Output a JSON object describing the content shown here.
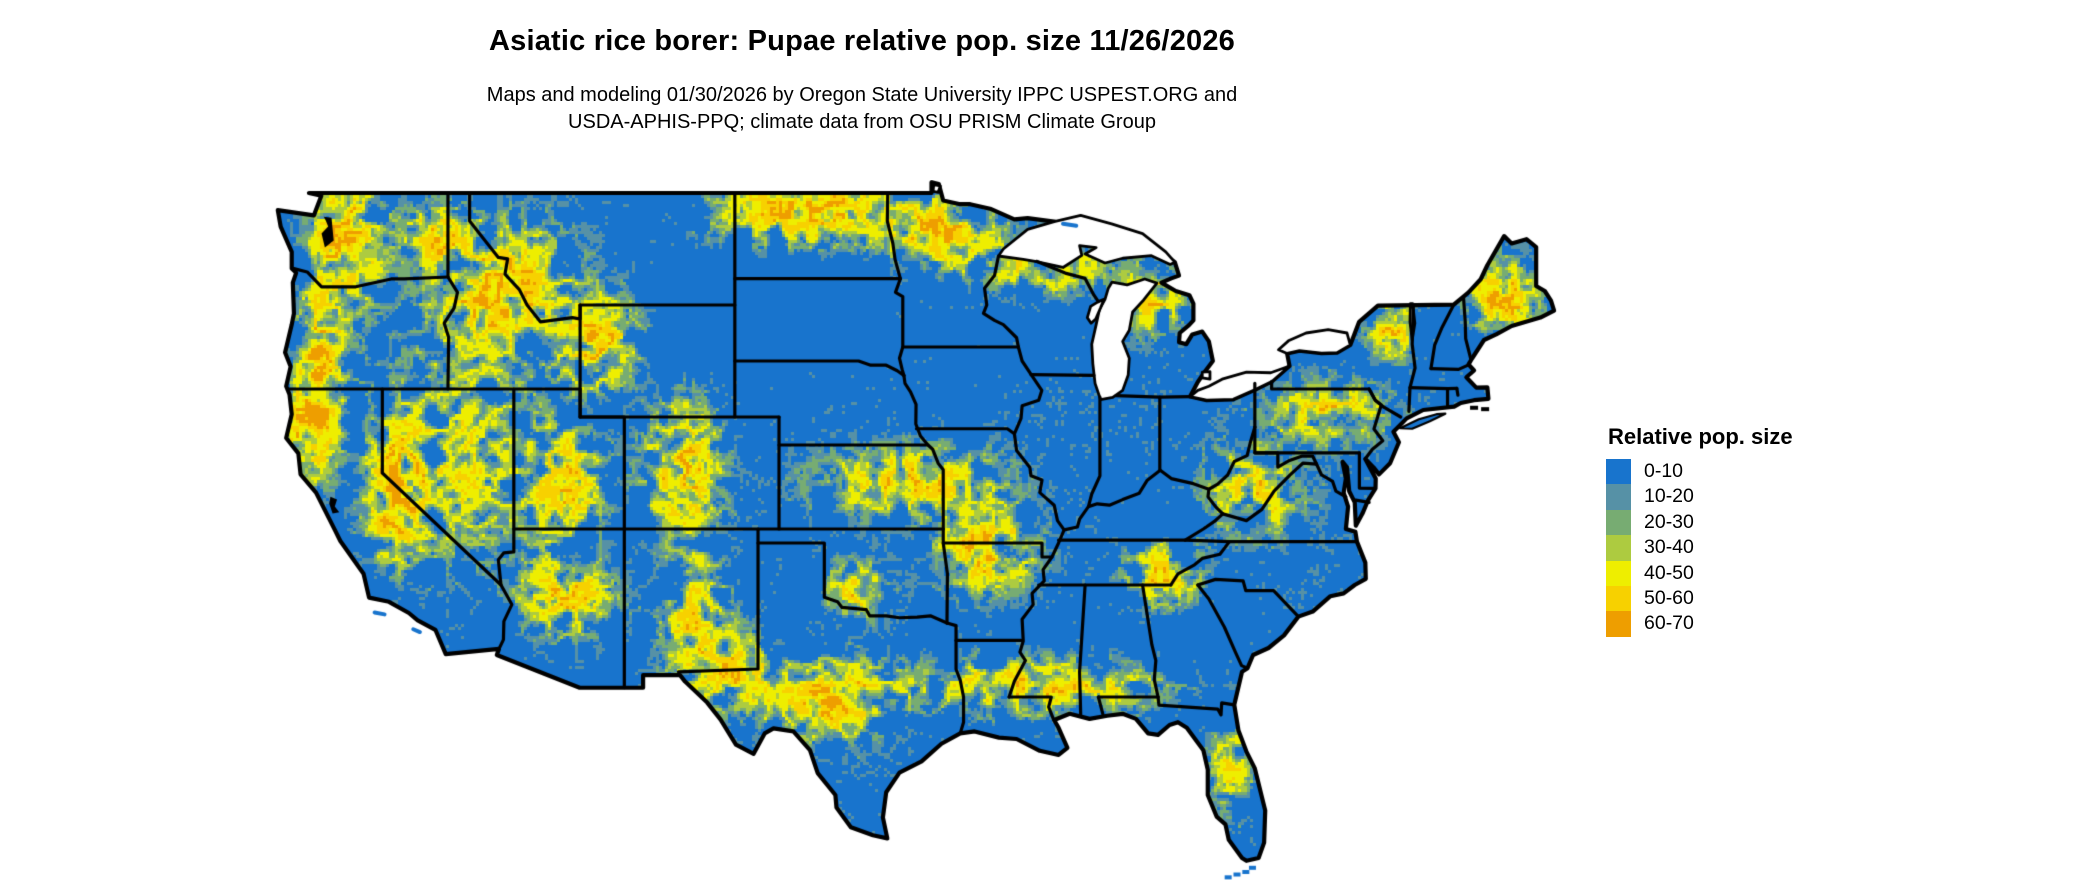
{
  "title": "Asiatic rice borer: Pupae relative pop. size 11/26/2026",
  "subtitle": {
    "line1": "Maps and modeling 01/30/2026 by Oregon State University IPPC USPEST.ORG and",
    "line2": "USDA-APHIS-PPQ; climate data from OSU PRISM Climate Group"
  },
  "legend": {
    "title": "Relative pop. size",
    "items": [
      {
        "label": "0-10",
        "color": "#1874CD"
      },
      {
        "label": "10-20",
        "color": "#5691A6"
      },
      {
        "label": "20-30",
        "color": "#77AC72"
      },
      {
        "label": "30-40",
        "color": "#ADCB40"
      },
      {
        "label": "40-50",
        "color": "#EEEE00"
      },
      {
        "label": "50-60",
        "color": "#F7D100"
      },
      {
        "label": "60-70",
        "color": "#EE9E00"
      }
    ]
  },
  "map": {
    "land_base_color": "#1874CD",
    "boundary_color": "#000000",
    "water_color": "#FFFFFF"
  }
}
